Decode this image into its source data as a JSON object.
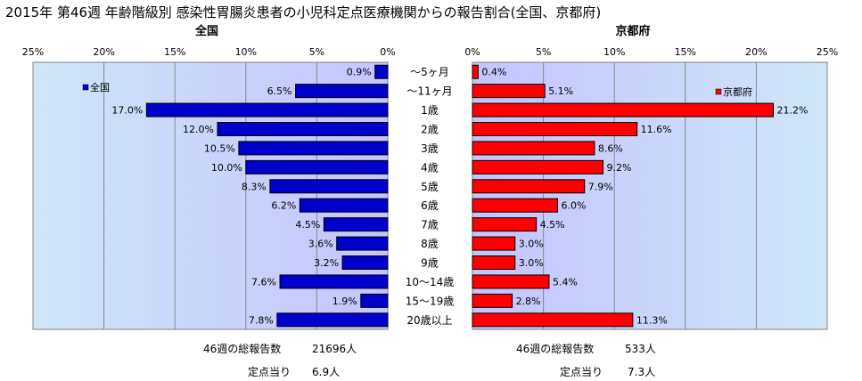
{
  "chart_data": {
    "type": "bar",
    "title": "2015年 第46週 年齢階級別 感染性胃腸炎患者の小児科定点医療機関からの報告割合(全国、京都府)",
    "categories": [
      "～5ヶ月",
      "～11ヶ月",
      "1歳",
      "2歳",
      "3歳",
      "4歳",
      "5歳",
      "6歳",
      "7歳",
      "8歳",
      "9歳",
      "10～14歳",
      "15～19歳",
      "20歳以上"
    ],
    "xlim": [
      0,
      25
    ],
    "ticks": [
      "25%",
      "20%",
      "15%",
      "10%",
      "5%",
      "0%"
    ],
    "ticks_right": [
      "0%",
      "5%",
      "10%",
      "15%",
      "20%",
      "25%"
    ],
    "grid": true,
    "series": [
      {
        "name": "全国",
        "header": "全国",
        "legend": "全国",
        "legend_position": "top-left",
        "color": "#0000cc",
        "values": [
          0.9,
          6.5,
          17.0,
          12.0,
          10.5,
          10.0,
          8.3,
          6.2,
          4.5,
          3.6,
          3.2,
          7.6,
          1.9,
          7.8
        ],
        "labels": [
          "0.9%",
          "6.5%",
          "17.0%",
          "12.0%",
          "10.5%",
          "10.0%",
          "8.3%",
          "6.2%",
          "4.5%",
          "3.6%",
          "3.2%",
          "7.6%",
          "1.9%",
          "7.8%"
        ]
      },
      {
        "name": "京都府",
        "header": "京都府",
        "legend": "京都府",
        "legend_position": "top-right",
        "color": "#ff0000",
        "values": [
          0.4,
          5.1,
          21.2,
          11.6,
          8.6,
          9.2,
          7.9,
          6.0,
          4.5,
          3.0,
          3.0,
          5.4,
          2.8,
          11.3
        ],
        "labels": [
          "0.4%",
          "5.1%",
          "21.2%",
          "11.6%",
          "8.6%",
          "9.2%",
          "7.9%",
          "6.0%",
          "4.5%",
          "3.0%",
          "3.0%",
          "5.4%",
          "2.8%",
          "11.3%"
        ]
      }
    ]
  },
  "footer": {
    "left": {
      "total_label": "46週の総報告数",
      "total_value": "21696人",
      "per_label": "定点当り",
      "per_value": "6.9人"
    },
    "right": {
      "total_label": "46週の総報告数",
      "total_value": "533人",
      "per_label": "定点当り",
      "per_value": "7.3人"
    }
  }
}
